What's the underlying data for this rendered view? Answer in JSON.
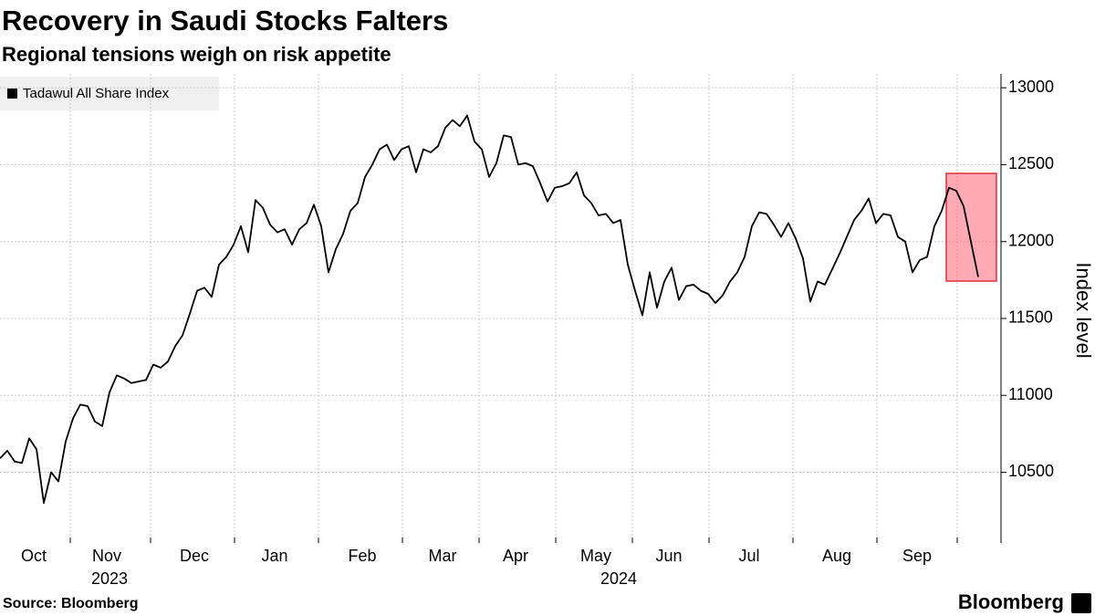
{
  "chart_data": {
    "type": "line",
    "title": "Recovery in Saudi Stocks Falters",
    "subtitle": "Regional tensions weigh on risk appetite",
    "y_axis_label": "Index level",
    "source": "Source: Bloomberg",
    "brand": "Bloomberg",
    "x_group_labels": [
      "2023",
      "2024"
    ],
    "categories": [
      null,
      null,
      null,
      null,
      null,
      "Oct",
      null,
      null,
      null,
      null,
      null,
      null,
      null,
      null,
      null,
      "Nov",
      null,
      null,
      null,
      null,
      null,
      null,
      null,
      null,
      null,
      null,
      null,
      "Dec",
      null,
      null,
      null,
      null,
      null,
      null,
      null,
      null,
      null,
      null,
      "Jan",
      null,
      null,
      null,
      null,
      null,
      null,
      null,
      null,
      null,
      null,
      null,
      "Feb",
      null,
      null,
      null,
      null,
      null,
      null,
      null,
      null,
      null,
      null,
      "Mar",
      null,
      null,
      null,
      null,
      null,
      null,
      null,
      null,
      null,
      "Apr",
      null,
      null,
      null,
      null,
      null,
      null,
      null,
      null,
      null,
      null,
      "May",
      null,
      null,
      null,
      null,
      null,
      null,
      null,
      null,
      null,
      "Jun",
      null,
      null,
      null,
      null,
      null,
      null,
      null,
      null,
      null,
      null,
      "Jul",
      null,
      null,
      null,
      null,
      null,
      null,
      null,
      null,
      null,
      null,
      null,
      "Aug",
      null,
      null,
      null,
      null,
      null,
      null,
      null,
      null,
      null,
      null,
      "Sep",
      null,
      null,
      null,
      null,
      null,
      null,
      null,
      null
    ],
    "series": [
      {
        "name": "Tadawul All Share Index",
        "color": "#000000",
        "values": [
          10590,
          10640,
          10570,
          10560,
          10720,
          10650,
          10300,
          10500,
          10440,
          10700,
          10850,
          10940,
          10930,
          10830,
          10800,
          11020,
          11130,
          11110,
          11080,
          11090,
          11100,
          11200,
          11180,
          11220,
          11320,
          11390,
          11530,
          11680,
          11700,
          11640,
          11850,
          11900,
          11980,
          12100,
          11930,
          12270,
          12220,
          12110,
          12060,
          12080,
          11980,
          12080,
          12120,
          12240,
          12100,
          11800,
          11950,
          12050,
          12200,
          12250,
          12420,
          12500,
          12600,
          12630,
          12530,
          12600,
          12620,
          12450,
          12600,
          12580,
          12620,
          12740,
          12790,
          12750,
          12820,
          12650,
          12600,
          12420,
          12510,
          12690,
          12680,
          12500,
          12510,
          12490,
          12380,
          12260,
          12350,
          12360,
          12380,
          12450,
          12300,
          12250,
          12170,
          12180,
          12120,
          12140,
          11850,
          11680,
          11520,
          11800,
          11570,
          11740,
          11830,
          11620,
          11710,
          11720,
          11680,
          11660,
          11600,
          11650,
          11740,
          11800,
          11900,
          12100,
          12190,
          12180,
          12110,
          12030,
          12120,
          12020,
          11890,
          11610,
          11740,
          11720,
          11820,
          11920,
          12030,
          12140,
          12200,
          12280,
          12120,
          12180,
          12170,
          12030,
          12000,
          11800,
          11880,
          11900,
          12100,
          12200,
          12350,
          12330,
          12230,
          12000,
          11770
        ]
      }
    ],
    "ylim": [
      10040,
      13090
    ],
    "yticks": [
      10500,
      11000,
      11500,
      12000,
      12500,
      13000
    ],
    "grid": true,
    "legend": "top-left"
  }
}
